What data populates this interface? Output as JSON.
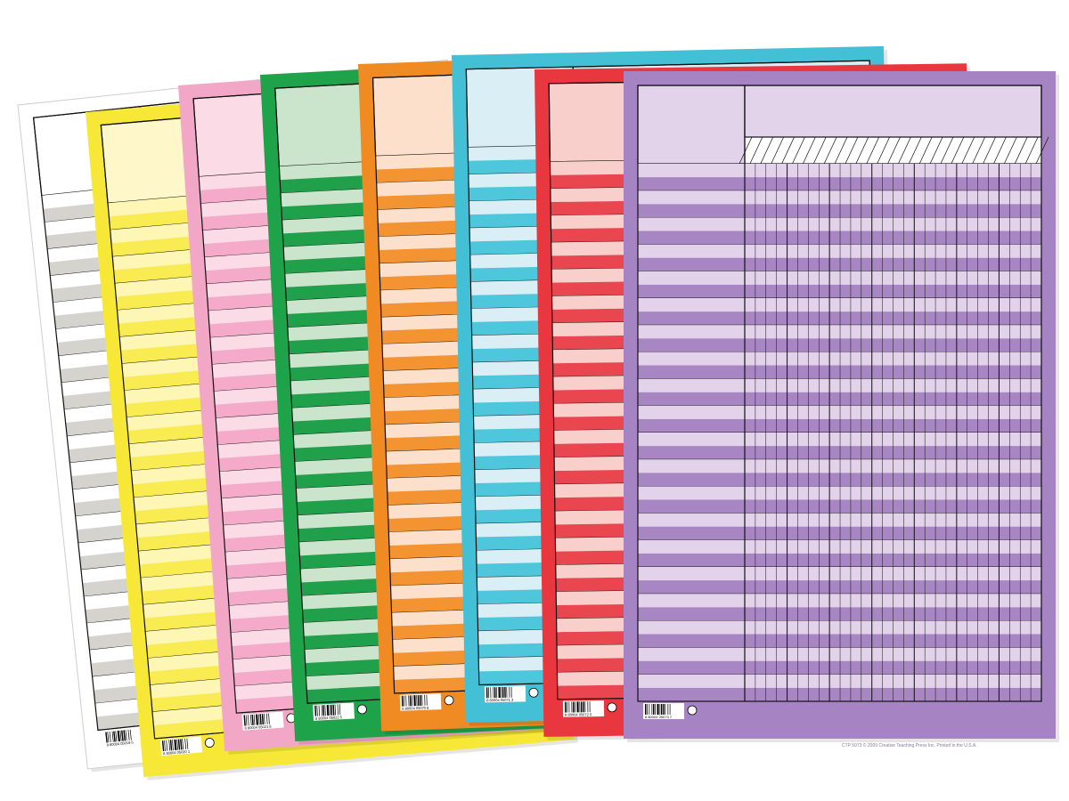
{
  "title": "",
  "sheets": [
    {
      "name": "white",
      "border": "#ffffff",
      "header": "#ffffff",
      "stripe_a": "#d5d3cd",
      "stripe_b": "#ffffff",
      "outline": "#111111",
      "barcode_label": "8 80004 05019 5",
      "rows": 20
    },
    {
      "name": "yellow",
      "border": "#f7e838",
      "header": "#fdf7c9",
      "stripe_a": "#f9ec52",
      "stripe_b": "#fdf6b5",
      "outline": "#111111",
      "barcode_label": "8 80004 05020 1",
      "rows": 20
    },
    {
      "name": "pink",
      "border": "#f3a7c6",
      "header": "#fadbe6",
      "stripe_a": "#f4aac8",
      "stripe_b": "#fadbe6",
      "outline": "#111111",
      "barcode_label": "8 80004 05021 8",
      "rows": 20
    },
    {
      "name": "green",
      "border": "#1ea34a",
      "header": "#cbe5cc",
      "stripe_a": "#20a04a",
      "stripe_b": "#cbe5cc",
      "outline": "#111111",
      "barcode_label": "8 80004 05022 5",
      "rows": 20
    },
    {
      "name": "orange",
      "border": "#f08a22",
      "header": "#fde0cc",
      "stripe_a": "#f39332",
      "stripe_b": "#fde0cc",
      "outline": "#111111",
      "barcode_label": "8 80004 05070 6",
      "rows": 20
    },
    {
      "name": "blue",
      "border": "#43bfd6",
      "header": "#d9eff5",
      "stripe_a": "#4ec6dc",
      "stripe_b": "#d9eff5",
      "outline": "#111111",
      "barcode_label": "8 80004 05071 3",
      "rows": 20
    },
    {
      "name": "red",
      "border": "#e9373f",
      "header": "#f9cfcc",
      "stripe_a": "#ea4650",
      "stripe_b": "#f9cfcc",
      "outline": "#111111",
      "barcode_label": "8 80004 05072 0",
      "rows": 20
    },
    {
      "name": "purple",
      "border": "#a683c3",
      "header": "#e2d2ea",
      "stripe_a": "#a786c3",
      "stripe_b": "#e2d2ea",
      "outline": "#111111",
      "barcode_label": "8 80004 05073 7",
      "rows": 20
    }
  ],
  "footer_text": "CTP 5073 © 2009 Creative Teaching Press Inc.    Printed in the U.S.A."
}
